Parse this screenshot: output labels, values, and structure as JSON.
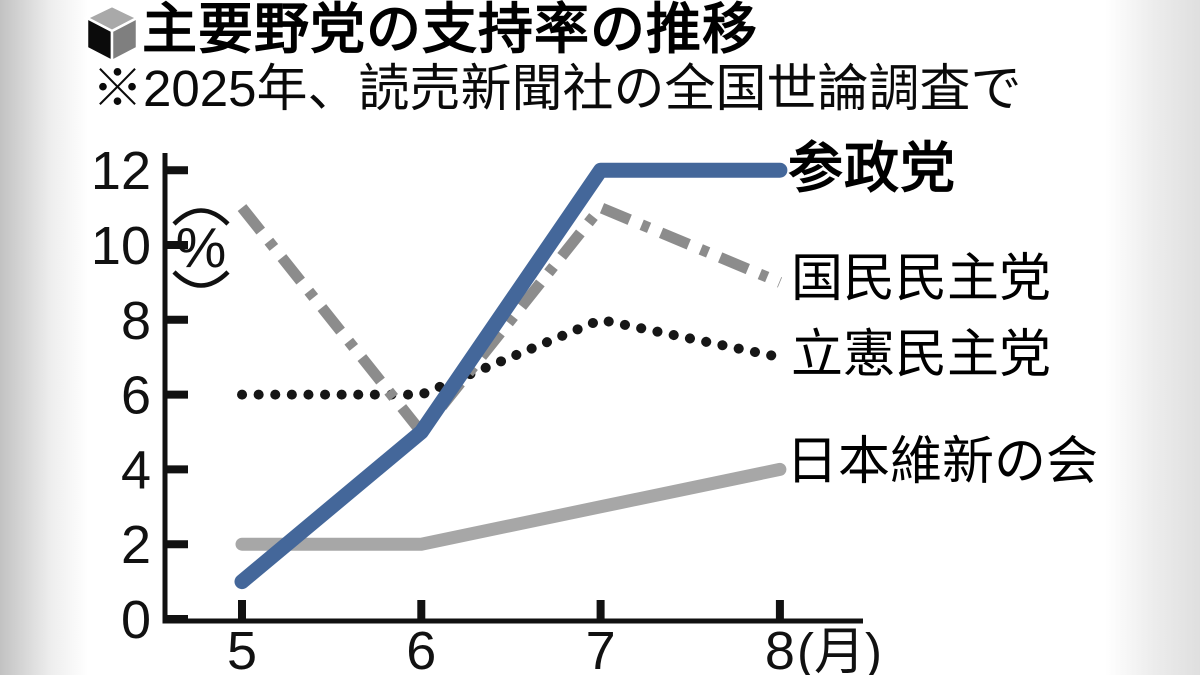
{
  "header": {
    "title": "主要野党の支持率の推移",
    "subtitle": "※2025年、読売新聞社の全国世論調査で"
  },
  "chart_data": {
    "type": "line",
    "x": [
      5,
      6,
      7,
      8
    ],
    "x_tick_labels": [
      "5",
      "6",
      "7",
      "8"
    ],
    "x_axis_unit": "(月)",
    "y_ticks": [
      0,
      2,
      4,
      6,
      8,
      10,
      12
    ],
    "y_axis_unit": "%",
    "ylim": [
      0,
      12
    ],
    "grid": false,
    "legend_position": "right of line ends",
    "series": [
      {
        "name": "参政党",
        "values": [
          1,
          5,
          12,
          12
        ],
        "color": "#44679a",
        "style": "solid",
        "width": 15,
        "label_bold": true
      },
      {
        "name": "国民民主党",
        "values": [
          11,
          5,
          11,
          9
        ],
        "color": "#8c8c8c",
        "style": "dashdot",
        "width": 11,
        "label_bold": false
      },
      {
        "name": "立憲民主党",
        "values": [
          6,
          6,
          8,
          7
        ],
        "color": "#161616",
        "style": "dotted",
        "width": 10,
        "label_bold": false
      },
      {
        "name": "日本維新の会",
        "values": [
          2,
          2,
          3,
          4
        ],
        "color": "#a7a7a7",
        "style": "solid",
        "width": 13,
        "label_bold": false
      }
    ],
    "title": "主要野党の支持率の推移",
    "subtitle": "※2025年、読売新聞社の全国世論調査で"
  }
}
